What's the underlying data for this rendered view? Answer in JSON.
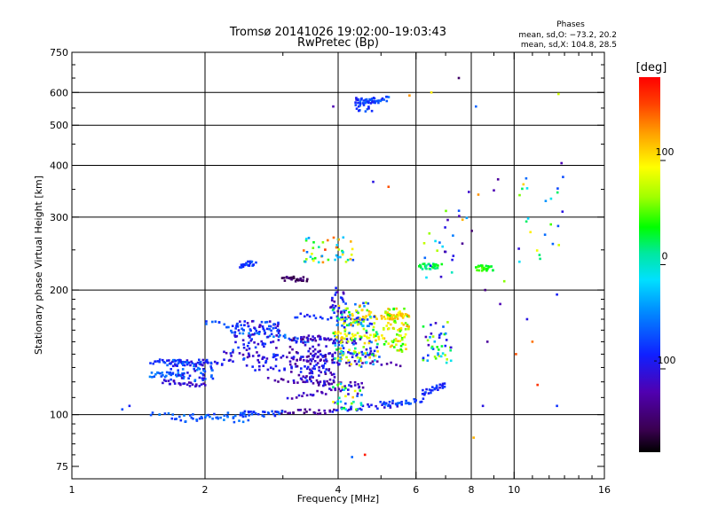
{
  "chart_data": {
    "type": "scatter",
    "title": "Tromsø 20141026 19:02:00–19:03:43",
    "subtitle": "RwPretec (Bp)",
    "xlabel": "Frequency [MHz]",
    "ylabel": "Stationary phase Virtual Height [km]",
    "x_scale": "log2",
    "y_scale": "log",
    "xlim": [
      1,
      16
    ],
    "ylim": [
      70,
      750
    ],
    "x_ticks": [
      1,
      2,
      4,
      6,
      8,
      10,
      16
    ],
    "y_ticks": [
      75,
      100,
      200,
      300,
      400,
      500,
      600,
      750
    ],
    "x_grid": [
      2,
      4,
      6,
      8,
      10
    ],
    "y_grid": [
      100,
      200,
      300,
      400,
      500,
      600
    ],
    "grid": true,
    "phase_box": {
      "title": "Phases",
      "line1": "mean, sd,O: −73.2, 20.2",
      "line2": "mean, sd,X: 104.8, 28.5"
    },
    "colorbar": {
      "label": "[deg]",
      "ticks": [
        100,
        0,
        -100
      ],
      "range": [
        -180,
        180
      ],
      "colormap": "rainbow (black → purple → blue → cyan → green → yellow → orange → red)"
    },
    "traces": [
      {
        "f": [
          1.6,
          2.0
        ],
        "h": [
          120,
          118
        ],
        "phase": -110
      },
      {
        "f": [
          1.5,
          1.9
        ],
        "h": [
          134,
          133
        ],
        "phase": -80
      },
      {
        "f": [
          1.7,
          2.3
        ],
        "h": [
          133,
          134
        ],
        "phase": -100
      },
      {
        "f": [
          1.5,
          1.8
        ],
        "h": [
          125,
          125
        ],
        "phase": -60
      },
      {
        "f": [
          2.0,
          3.0
        ],
        "h": [
          168,
          157
        ],
        "phase": -75
      },
      {
        "f": [
          2.3,
          3.5
        ],
        "h": [
          160,
          150
        ],
        "phase": -60
      },
      {
        "f": [
          2.2,
          3.6
        ],
        "h": [
          140,
          136
        ],
        "phase": -110
      },
      {
        "f": [
          2.5,
          3.8
        ],
        "h": [
          130,
          128
        ],
        "phase": -95
      },
      {
        "f": [
          2.8,
          4.6
        ],
        "h": [
          122,
          118
        ],
        "phase": -130
      },
      {
        "f": [
          3.2,
          4.8
        ],
        "h": [
          174,
          168
        ],
        "phase": -80
      },
      {
        "f": [
          3.3,
          4.4
        ],
        "h": [
          154,
          150
        ],
        "phase": -115
      },
      {
        "f": [
          3.5,
          4.8
        ],
        "h": [
          139,
          140
        ],
        "phase": -100
      },
      {
        "f": [
          3.2,
          5.5
        ],
        "h": [
          135,
          132
        ],
        "phase": -125
      },
      {
        "f": [
          3.1,
          4.5
        ],
        "h": [
          110,
          117
        ],
        "phase": -110
      },
      {
        "f": [
          2.9,
          3.9
        ],
        "h": [
          101,
          102
        ],
        "phase": -130
      },
      {
        "f": [
          3.9,
          5.6
        ],
        "h": [
          103,
          106
        ],
        "phase": -95
      },
      {
        "f": [
          1.7,
          2.6
        ],
        "h": [
          97,
          101
        ],
        "phase": -70
      },
      {
        "f": [
          2.4,
          3.0
        ],
        "h": [
          100,
          101
        ],
        "phase": -75
      },
      {
        "f": [
          1.5,
          2.5
        ],
        "h": [
          100,
          97
        ],
        "phase": -60
      },
      {
        "f": [
          5.0,
          6.2
        ],
        "h": [
          106,
          108
        ],
        "phase": -70
      },
      {
        "f": [
          6.2,
          7.0
        ],
        "h": [
          113,
          118
        ],
        "phase": -85
      },
      {
        "f": [
          5.2,
          5.7
        ],
        "h": [
          172,
          174
        ],
        "phase": 120
      },
      {
        "f": [
          4.3,
          5.5
        ],
        "h": [
          172,
          172
        ],
        "phase": 110
      },
      {
        "f": [
          4.0,
          5.0
        ],
        "h": [
          155,
          154
        ],
        "phase": 90
      },
      {
        "f": [
          2.4,
          2.6
        ],
        "h": [
          230,
          232
        ],
        "phase": -75
      },
      {
        "f": [
          3.0,
          3.4
        ],
        "h": [
          213,
          213
        ],
        "phase": -150
      },
      {
        "f": [
          4.5,
          5.2
        ],
        "h": [
          565,
          580
        ],
        "phase": -70
      },
      {
        "f": [
          6.1,
          6.8
        ],
        "h": [
          228,
          228
        ],
        "phase": 20
      },
      {
        "f": [
          8.2,
          8.9
        ],
        "h": [
          226,
          226
        ],
        "phase": 40
      }
    ],
    "clusters": [
      {
        "fc": 1.85,
        "hc": 128,
        "fr": 0.12,
        "hr": 0.06,
        "n": 70,
        "phase": [
          -110,
          -50
        ]
      },
      {
        "fc": 2.6,
        "hc": 150,
        "fr": 0.13,
        "hr": 0.12,
        "n": 90,
        "phase": [
          -120,
          -60
        ]
      },
      {
        "fc": 3.5,
        "hc": 135,
        "fr": 0.12,
        "hr": 0.14,
        "n": 110,
        "phase": [
          -140,
          -80
        ]
      },
      {
        "fc": 4.4,
        "hc": 150,
        "fr": 0.12,
        "hr": 0.14,
        "n": 120,
        "phase": [
          -120,
          120
        ]
      },
      {
        "fc": 5.4,
        "hc": 160,
        "fr": 0.07,
        "hr": 0.12,
        "n": 80,
        "phase": [
          30,
          130
        ]
      },
      {
        "fc": 6.7,
        "hc": 150,
        "fr": 0.08,
        "hr": 0.12,
        "n": 45,
        "phase": [
          -120,
          80
        ]
      },
      {
        "fc": 3.8,
        "hc": 250,
        "fr": 0.13,
        "hr": 0.07,
        "n": 45,
        "phase": [
          -70,
          160
        ]
      },
      {
        "fc": 4.3,
        "hc": 175,
        "fr": 0.1,
        "hr": 0.07,
        "n": 50,
        "phase": [
          -90,
          140
        ]
      },
      {
        "fc": 4.0,
        "hc": 190,
        "fr": 0.04,
        "hr": 0.08,
        "n": 25,
        "phase": [
          -130,
          -70
        ]
      },
      {
        "fc": 4.6,
        "hc": 560,
        "fr": 0.05,
        "hr": 0.04,
        "n": 30,
        "phase": [
          -100,
          -60
        ]
      },
      {
        "fc": 7.2,
        "hc": 260,
        "fr": 0.14,
        "hr": 0.2,
        "n": 25,
        "phase": [
          -150,
          120
        ]
      },
      {
        "fc": 11.5,
        "hc": 300,
        "fr": 0.12,
        "hr": 0.25,
        "n": 22,
        "phase": [
          -120,
          110
        ]
      },
      {
        "fc": 4.2,
        "hc": 110,
        "fr": 0.08,
        "hr": 0.08,
        "n": 35,
        "phase": [
          -130,
          120
        ]
      }
    ],
    "isolated": [
      {
        "f": 1.35,
        "h": 105,
        "phase": -90
      },
      {
        "f": 1.3,
        "h": 103,
        "phase": -70
      },
      {
        "f": 4.6,
        "h": 80,
        "phase": 170
      },
      {
        "f": 4.3,
        "h": 79,
        "phase": -60
      },
      {
        "f": 8.1,
        "h": 88,
        "phase": 120
      },
      {
        "f": 8.5,
        "h": 105,
        "phase": -100
      },
      {
        "f": 12.5,
        "h": 105,
        "phase": -80
      },
      {
        "f": 7.5,
        "h": 650,
        "phase": -150
      },
      {
        "f": 12.6,
        "h": 595,
        "phase": 80
      },
      {
        "f": 12.8,
        "h": 405,
        "phase": -120
      },
      {
        "f": 8.2,
        "h": 555,
        "phase": -60
      },
      {
        "f": 6.5,
        "h": 600,
        "phase": 100
      },
      {
        "f": 5.8,
        "h": 590,
        "phase": 130
      },
      {
        "f": 3.9,
        "h": 555,
        "phase": -120
      },
      {
        "f": 4.8,
        "h": 365,
        "phase": -100
      },
      {
        "f": 5.2,
        "h": 355,
        "phase": 150
      },
      {
        "f": 9.2,
        "h": 370,
        "phase": -130
      },
      {
        "f": 9.0,
        "h": 348,
        "phase": -120
      },
      {
        "f": 8.3,
        "h": 340,
        "phase": 130
      },
      {
        "f": 7.9,
        "h": 345,
        "phase": -110
      },
      {
        "f": 8.6,
        "h": 200,
        "phase": -140
      },
      {
        "f": 9.3,
        "h": 185,
        "phase": -120
      },
      {
        "f": 8.7,
        "h": 150,
        "phase": -130
      },
      {
        "f": 11.0,
        "h": 150,
        "phase": 140
      },
      {
        "f": 10.7,
        "h": 170,
        "phase": -100
      },
      {
        "f": 12.5,
        "h": 195,
        "phase": -90
      },
      {
        "f": 10.1,
        "h": 140,
        "phase": 150
      },
      {
        "f": 11.3,
        "h": 118,
        "phase": 160
      },
      {
        "f": 9.5,
        "h": 210,
        "phase": 60
      },
      {
        "f": 10.5,
        "h": 360,
        "phase": 110
      },
      {
        "f": 12.9,
        "h": 375,
        "phase": -70
      }
    ]
  }
}
